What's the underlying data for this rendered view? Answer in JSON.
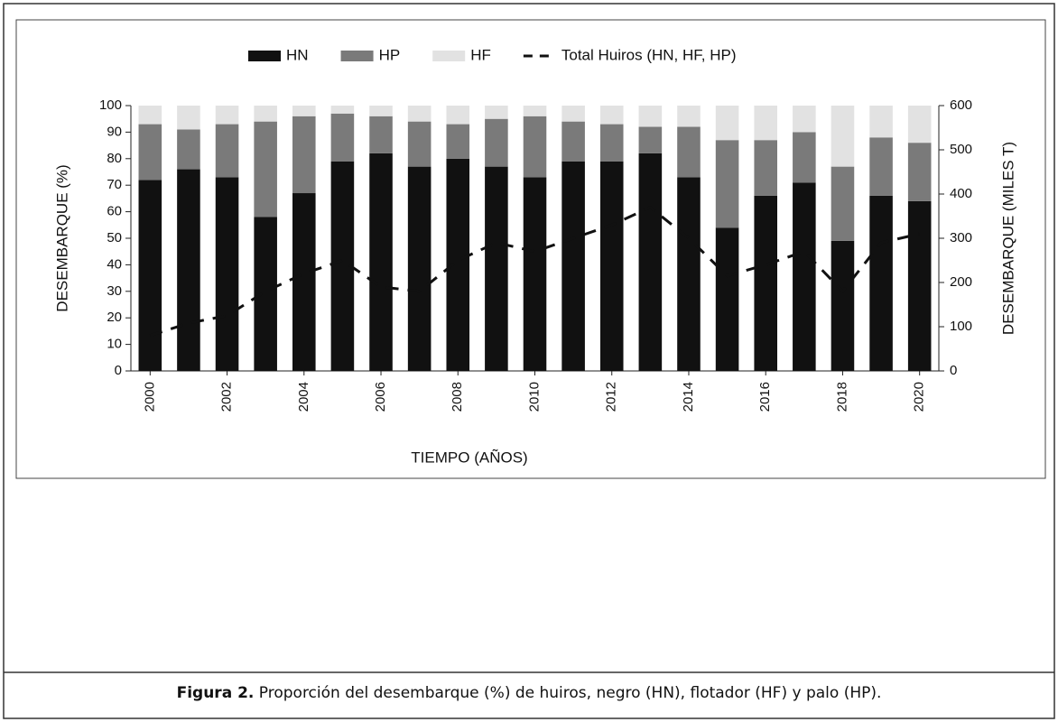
{
  "chart_data": {
    "type": "bar",
    "stacked": true,
    "x_label": "TIEMPO (AÑOS)",
    "y_label": "DESEMBARQUE (%)",
    "y2_label": "DESEMBARQUE (MILES T)",
    "categories": [
      "2000",
      null,
      "2002",
      null,
      "2004",
      null,
      "2006",
      null,
      "2008",
      null,
      "2010",
      null,
      "2012",
      null,
      "2014",
      null,
      "2016",
      null,
      "2018",
      null,
      "2020"
    ],
    "series": [
      {
        "name": "HN",
        "color": "#111111",
        "values": [
          72,
          76,
          73,
          58,
          67,
          79,
          82,
          77,
          80,
          77,
          73,
          79,
          79,
          82,
          73,
          54,
          66,
          71,
          49,
          66,
          64
        ]
      },
      {
        "name": "HP",
        "color": "#7a7a7a",
        "values": [
          21,
          15,
          20,
          36,
          29,
          18,
          14,
          17,
          13,
          18,
          23,
          15,
          14,
          10,
          19,
          33,
          21,
          19,
          28,
          22,
          22
        ]
      },
      {
        "name": "HF",
        "color": "#e2e2e2",
        "values": [
          7,
          9,
          7,
          6,
          4,
          3,
          4,
          6,
          7,
          5,
          4,
          6,
          7,
          8,
          8,
          13,
          13,
          10,
          23,
          12,
          14
        ]
      },
      {
        "name": "Total Huiros (HN, HF, HP)",
        "type": "line",
        "axis": "y2",
        "color": "#111111",
        "dashed": true,
        "values": [
          80,
          108,
          125,
          180,
          220,
          250,
          190,
          180,
          250,
          290,
          270,
          300,
          330,
          370,
          300,
          215,
          240,
          270,
          180,
          290,
          310
        ]
      }
    ],
    "ylim": [
      0,
      100
    ],
    "yticks": [
      0,
      10,
      20,
      30,
      40,
      50,
      60,
      70,
      80,
      90,
      100
    ],
    "y2lim": [
      0,
      600
    ],
    "y2ticks": [
      0,
      100,
      200,
      300,
      400,
      500,
      600
    ],
    "legend": "top"
  },
  "caption": {
    "label": "Figura 2.",
    "text": " Proporción del desembarque (%) de huiros, negro (HN), flotador (HF) y palo (HP)."
  }
}
